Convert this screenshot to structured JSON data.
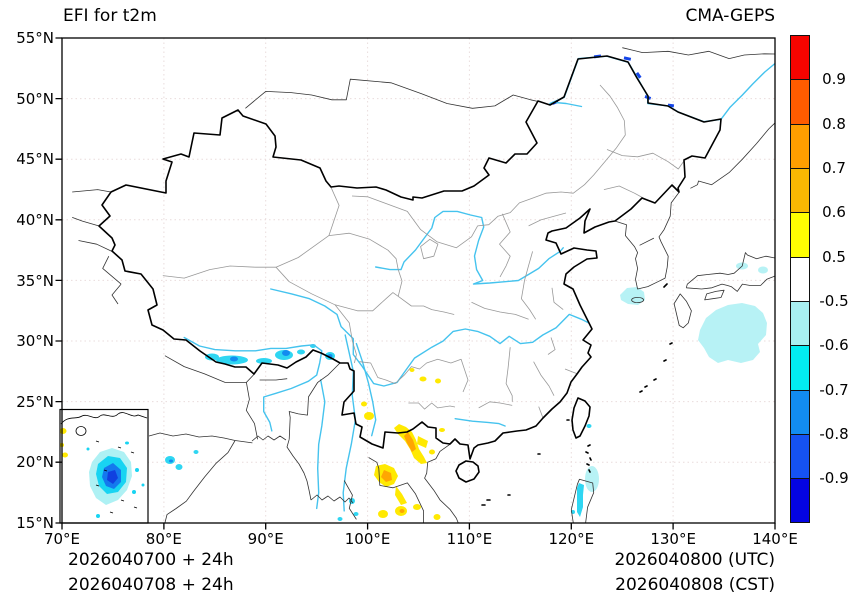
{
  "titles": {
    "left": "EFI for t2m",
    "right": "CMA-GEPS"
  },
  "axes": {
    "lat_ticks": [
      "55°N",
      "50°N",
      "45°N",
      "40°N",
      "35°N",
      "30°N",
      "25°N",
      "20°N",
      "15°N"
    ],
    "lon_ticks": [
      "70°E",
      "80°E",
      "90°E",
      "100°E",
      "110°E",
      "120°E",
      "130°E",
      "140°E"
    ]
  },
  "colorbar": {
    "boundary_labels": [
      "0.9",
      "0.8",
      "0.7",
      "0.6",
      "0.5",
      "-0.5",
      "-0.6",
      "-0.7",
      "-0.8",
      "-0.9"
    ],
    "colors_top_to_bottom": [
      "#f60400",
      "#ff5c00",
      "#ff9e00",
      "#f9b702",
      "#fffe02",
      "#ffffff",
      "#a8f0f2",
      "#02ecf2",
      "#128cf0",
      "#1552f2",
      "#0404e2"
    ]
  },
  "footer": {
    "init_line1": "2026040700 + 24h",
    "init_line2": "2026040708 + 24h",
    "valid_line1": "2026040800 (UTC)",
    "valid_line2": "2026040808 (CST)"
  },
  "map_content": {
    "projection_extent": {
      "lon": [
        "70E",
        "140E"
      ],
      "lat": [
        "15N",
        "55N"
      ]
    },
    "line_colors": {
      "national_border": "#000000",
      "province_border": "#999999",
      "foreign_coastline": "#333333",
      "river": "#45c3ee",
      "gridline": "#e9dcdc"
    },
    "efi_negative_regions": [
      "cyan band along Himalayan border (83E-97E, ~28-29N)",
      "small cyan spots central India (~77-84E, 19-22N)",
      "cyan specks Myanmar coast (~95-99E, 15-17N)",
      "pale cyan sea patch west of Jeju/Kyushu (~124-126E, 33-34N)",
      "large pale cyan sea patch south of Japan (~131-138E, 27-32N)",
      "cyan streak over Luzon (~120-121E, 16-19N)",
      "dark blue dashes along Amur river (~120-134E, 48-53.5N)",
      "blue/cyan blob inside bottom-left inset box"
    ],
    "efi_positive_regions": [
      "yellow-orange patches northern Vietnam/Laos (~101-106E, 17-23N)",
      "yellow specks Guizhou (~104-107E, 26-28N)",
      "yellow smudges near bottom edge (~100-107E, 15-16.5N)",
      "yellow specks at left edge of inset box"
    ]
  }
}
